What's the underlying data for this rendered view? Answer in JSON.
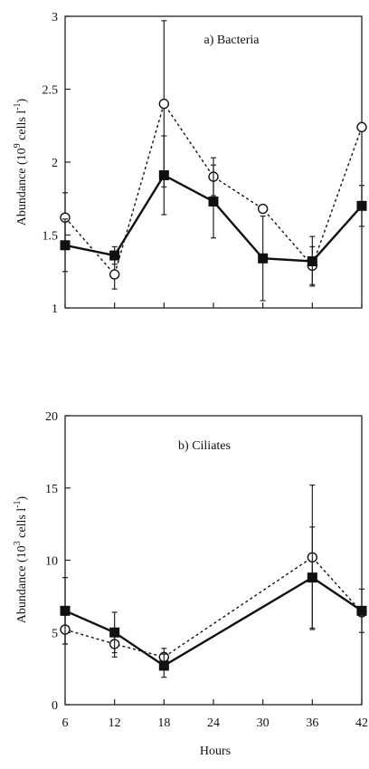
{
  "chart_data": [
    {
      "type": "line",
      "title": "a) Bacteria",
      "xlabel": "",
      "ylabel": "Abundance (10",
      "ylabel_sup": "9",
      "ylabel_tail": " cells l",
      "ylabel_tail_sup": "-1",
      "ylabel_close": ")",
      "xlim": [
        6,
        42
      ],
      "ylim": [
        1,
        3
      ],
      "yticks": [
        1,
        1.5,
        2,
        2.5,
        3
      ],
      "ytick_labels": [
        "1",
        "1.5",
        "2",
        "2.5",
        "3"
      ],
      "xticks": [
        6,
        12,
        18,
        24,
        30,
        36,
        42
      ],
      "xtick_labels": [
        "",
        "",
        "",
        "",
        "",
        "",
        ""
      ],
      "series": [
        {
          "marker": "filled-square",
          "line": "solid",
          "x": [
            6,
            12,
            18,
            24,
            30,
            36,
            42
          ],
          "y": [
            1.43,
            1.36,
            1.91,
            1.73,
            1.34,
            1.32,
            1.7
          ],
          "err": [
            0.18,
            0.06,
            0.27,
            0.25,
            0.29,
            0.17,
            0.14
          ]
        },
        {
          "marker": "open-circle",
          "line": "dotted",
          "x": [
            6,
            12,
            18,
            24,
            30,
            36,
            42
          ],
          "y": [
            1.62,
            1.23,
            2.4,
            1.9,
            1.68,
            1.29,
            2.24
          ],
          "err": [
            0.17,
            0.1,
            0.57,
            0.13,
            0.0,
            0.13,
            0.0
          ]
        }
      ]
    },
    {
      "type": "line",
      "title": "b) Ciliates",
      "xlabel": "Hours",
      "ylabel": "Abundance (10",
      "ylabel_sup": "3",
      "ylabel_tail": " cells l",
      "ylabel_tail_sup": "-1",
      "ylabel_close": ")",
      "xlim": [
        6,
        42
      ],
      "ylim": [
        0,
        20
      ],
      "yticks": [
        0,
        5,
        10,
        15,
        20
      ],
      "ytick_labels": [
        "0",
        "5",
        "10",
        "15",
        "20"
      ],
      "xticks": [
        6,
        12,
        18,
        24,
        30,
        36,
        42
      ],
      "xtick_labels": [
        "6",
        "12",
        "18",
        "24",
        "30",
        "36",
        "42"
      ],
      "series": [
        {
          "marker": "filled-square",
          "line": "solid",
          "x": [
            6,
            12,
            18,
            36,
            42
          ],
          "y": [
            6.5,
            5.0,
            2.7,
            8.8,
            6.5
          ],
          "err": [
            2.3,
            1.4,
            0.8,
            3.5,
            1.5
          ]
        },
        {
          "marker": "open-circle",
          "line": "dotted",
          "x": [
            6,
            12,
            18,
            36,
            42
          ],
          "y": [
            5.2,
            4.2,
            3.3,
            10.2,
            6.4
          ],
          "err": [
            1.0,
            0.9,
            0.6,
            5.0,
            0.0
          ]
        }
      ]
    }
  ]
}
